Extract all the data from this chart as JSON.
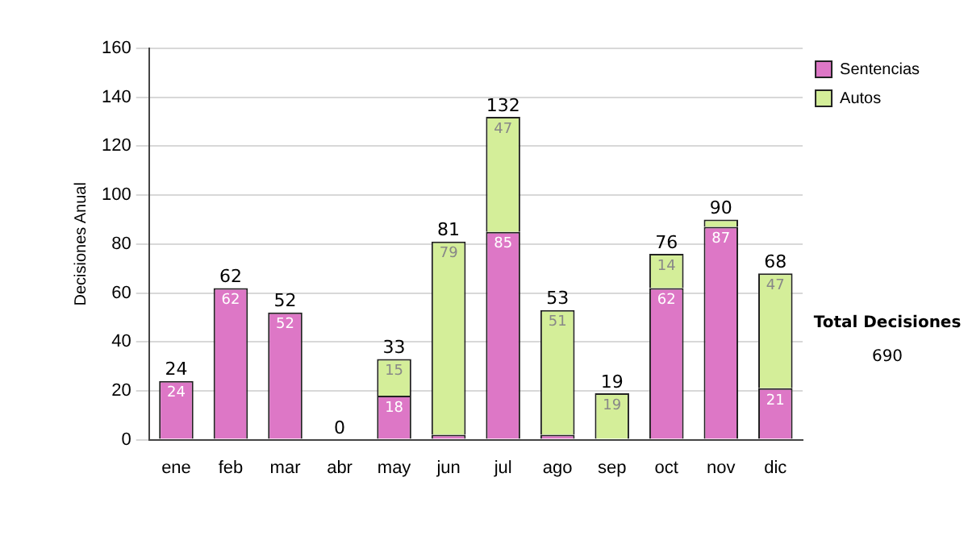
{
  "chart_data": {
    "type": "bar",
    "stacked": true,
    "ylabel": "Decisiones Anual",
    "categories": [
      "ene",
      "feb",
      "mar",
      "abr",
      "may",
      "jun",
      "jul",
      "ago",
      "sep",
      "oct",
      "nov",
      "dic"
    ],
    "series": [
      {
        "name": "Sentencias",
        "color": "#dd77c6",
        "values": [
          24,
          62,
          52,
          0,
          18,
          2,
          85,
          2,
          0,
          62,
          87,
          21
        ],
        "value_labels": [
          "24",
          "62",
          "52",
          null,
          "18",
          null,
          "85",
          null,
          null,
          "62",
          "87",
          "21"
        ]
      },
      {
        "name": "Autos",
        "color": "#d4ee99",
        "values": [
          0,
          0,
          0,
          0,
          15,
          79,
          47,
          51,
          19,
          14,
          3,
          47
        ],
        "value_labels": [
          null,
          null,
          null,
          null,
          "15",
          "79",
          "47",
          "51",
          "19",
          "14",
          null,
          "47"
        ]
      }
    ],
    "totals": [
      "24",
      "62",
      "52",
      "0",
      "33",
      "81",
      "132",
      "53",
      "19",
      "76",
      "90",
      "68"
    ],
    "ylim": [
      0,
      160
    ],
    "yticks": [
      0,
      20,
      40,
      60,
      80,
      100,
      120,
      140,
      160
    ],
    "grid": "y",
    "legend": "right",
    "annotations": [
      "Total Decisiones",
      "690"
    ]
  }
}
